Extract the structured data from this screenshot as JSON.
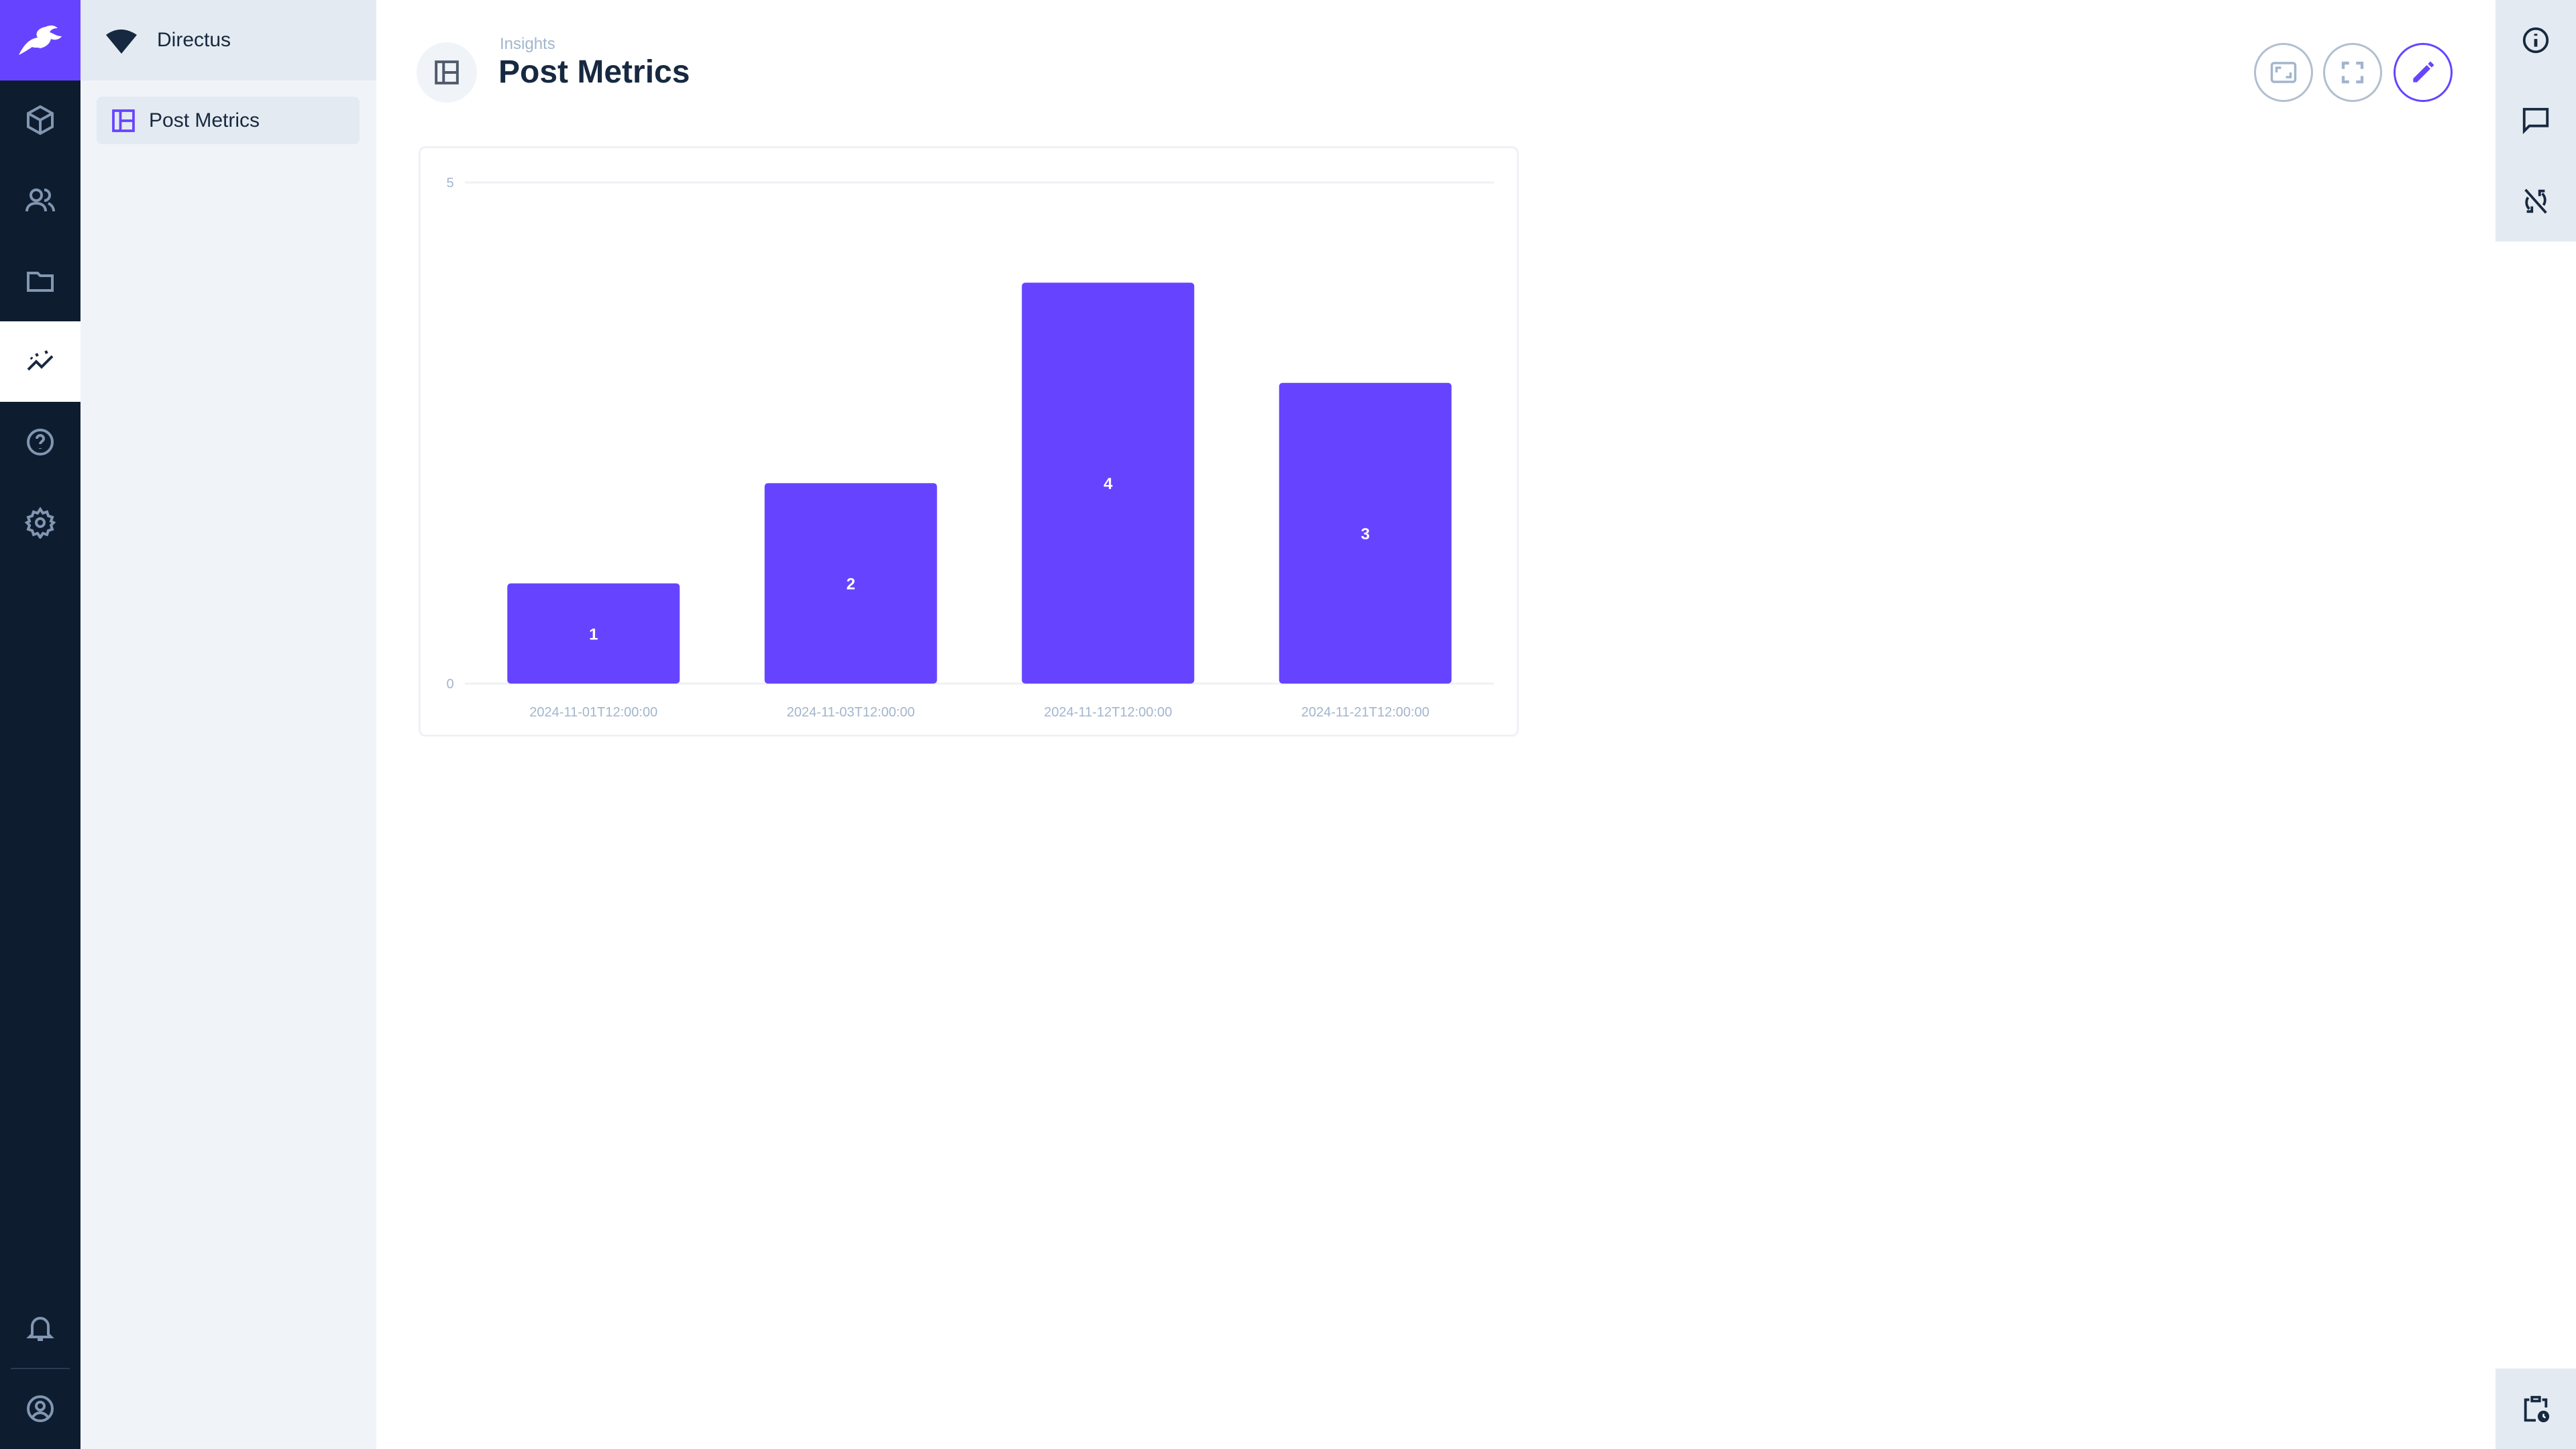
{
  "app": {
    "project_name": "Directus",
    "accent": "#6644ff"
  },
  "nav": {
    "items": [
      {
        "icon": "cube-icon",
        "name": "content"
      },
      {
        "icon": "users-icon",
        "name": "users"
      },
      {
        "icon": "folder-icon",
        "name": "files"
      },
      {
        "icon": "insights-icon",
        "name": "insights",
        "active": true
      },
      {
        "icon": "help-icon",
        "name": "help"
      },
      {
        "icon": "gear-icon",
        "name": "settings"
      }
    ]
  },
  "sidebar": {
    "items": [
      {
        "label": "Post Metrics",
        "icon": "dashboard-icon",
        "active": true
      }
    ]
  },
  "header": {
    "breadcrumb": "Insights",
    "title": "Post Metrics"
  },
  "chart_data": {
    "type": "bar",
    "categories": [
      "2024-11-01T12:00:00",
      "2024-11-03T12:00:00",
      "2024-11-12T12:00:00",
      "2024-11-21T12:00:00"
    ],
    "values": [
      1,
      2,
      4,
      3
    ],
    "ylim": [
      0,
      5
    ],
    "yticks": [
      "0",
      "5"
    ],
    "bar_color": "#6644ff",
    "data_labels": true,
    "grid": true
  }
}
